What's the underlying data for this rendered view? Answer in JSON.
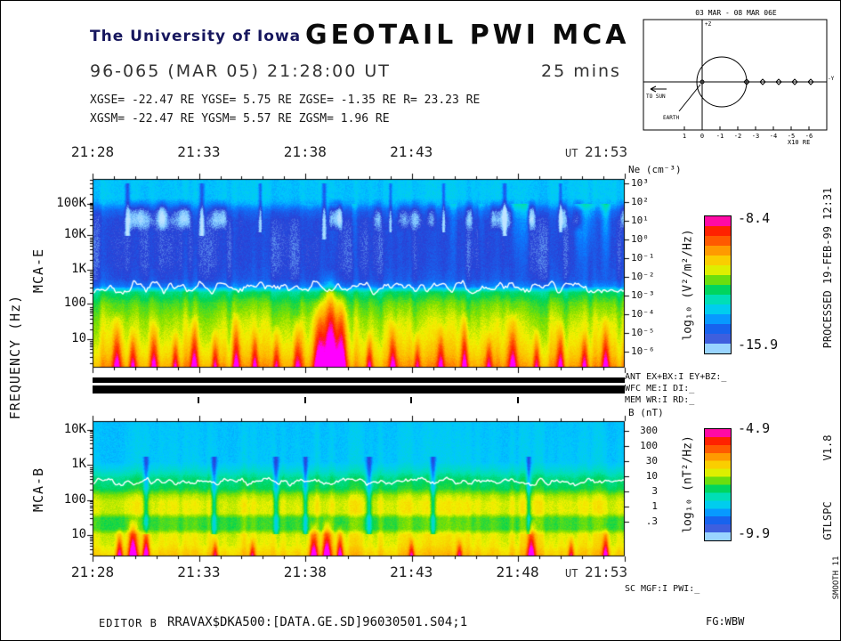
{
  "header": {
    "org": "The University of Iowa",
    "title": "GEOTAIL PWI MCA",
    "date_line": "96-065 (MAR 05) 21:28:00 UT",
    "duration": "25 mins",
    "gse_line": "XGSE= -22.47 RE   YGSE=   5.75 RE   ZGSE=  -1.35 RE   R= 23.23 RE",
    "gsm_line": "XGSM= -22.47 RE   YGSM=   5.57 RE   ZGSM=   1.96 RE"
  },
  "orbit_inset": {
    "title": "03 MAR - 08 MAR  06E",
    "to_sun_label": "TO SUN",
    "earth_label": "EARTH",
    "axis_unit": "X10 RE",
    "x_tick_numbers": [
      "1",
      "0",
      "-1",
      "-2",
      "-3",
      "-4",
      "-5",
      "-6"
    ],
    "z_axis_label": "+Z",
    "y_axis_label": "-Y"
  },
  "axes": {
    "ut_label": "UT",
    "top_times": [
      "21:28",
      "21:33",
      "21:38",
      "21:43"
    ],
    "top_end_time": "21:53",
    "bottom_times": [
      "21:28",
      "21:33",
      "21:38",
      "21:43",
      "21:48"
    ],
    "bottom_end_time": "21:53",
    "freq_axis_label": "FREQUENCY (Hz)",
    "panel_e_label": "MCA-E",
    "panel_b_label": "MCA-B"
  },
  "status_flags": {
    "line1": "ANT EX+BX:I EY+BZ:_",
    "line2": "WFC ME:I DI:_",
    "line3": "MEM WR:I RD:_",
    "sc_line": "SC MGF:I PWI:_"
  },
  "side_notes": {
    "processed": "PROCESSED 19-FEB-99  12:31",
    "version": "V1.8",
    "program": "GTLSPC",
    "smooth": "SMOOTH 11"
  },
  "footer": {
    "editor": "EDITOR B",
    "file": "RRAVAX$DKA500:[DATA.GE.SD]96030501.S04;1",
    "fg": "FG:WBW"
  },
  "palette": {
    "description": "rainbow intensity scale, low to high",
    "stops": [
      [
        0.0,
        "#bfe4ff"
      ],
      [
        0.06,
        "#7ec8ff"
      ],
      [
        0.12,
        "#2a3fd4"
      ],
      [
        0.22,
        "#0b7bff"
      ],
      [
        0.3,
        "#00c8ff"
      ],
      [
        0.4,
        "#00e0b0"
      ],
      [
        0.47,
        "#00d455"
      ],
      [
        0.55,
        "#7fe000"
      ],
      [
        0.62,
        "#f2f200"
      ],
      [
        0.72,
        "#ffb400"
      ],
      [
        0.82,
        "#ff5a00"
      ],
      [
        0.9,
        "#ff1e00"
      ],
      [
        1.0,
        "#ff00ff"
      ]
    ]
  },
  "chart_data": [
    {
      "id": "mca-e",
      "type": "heatmap",
      "instrument": "MCA-E electric field spectrogram",
      "x_axis": {
        "start": "21:28",
        "end": "21:53",
        "minutes": 25,
        "major_tick_min": 5,
        "minor_tick_min": 1,
        "unit": "UT"
      },
      "y_axis": {
        "scale": "log",
        "unit": "Hz",
        "tick_labels": [
          "100K",
          "10K",
          "1K",
          "100",
          "10"
        ]
      },
      "right_axis": {
        "title": "Ne (cm⁻³)",
        "tick_labels": [
          "10³",
          "10²",
          "10¹",
          "10⁰",
          "10⁻¹",
          "10⁻²",
          "10⁻³",
          "10⁻⁴",
          "10⁻⁵",
          "10⁻⁶"
        ]
      },
      "colorbar": {
        "title": "log₁₀ (V²/m²/Hz)",
        "max_label": "-8.4",
        "min_label": "-15.9",
        "max": -8.4,
        "min": -15.9
      },
      "trace": {
        "name": "electron-plasma-frequency-line",
        "color": "#ffffff",
        "base": 0.575,
        "amp": 0.03
      },
      "notable_features": "Continuum/cyan band above ~30 kHz; deep-blue quiet band 1-20 kHz; intense broadband burst near 21:39 reaching ~1 kHz; yellow-red low-frequency noise below the white plasma-frequency cutoff line (~300-500 Hz)",
      "render": {
        "profile": [
          [
            0,
            0.3
          ],
          [
            0.1,
            0.3
          ],
          [
            0.13,
            0.27
          ],
          [
            0.17,
            0.18
          ],
          [
            0.22,
            0.135
          ],
          [
            0.34,
            0.125
          ],
          [
            0.46,
            0.13
          ],
          [
            0.53,
            0.15
          ],
          [
            0.57,
            0.22
          ],
          [
            0.6,
            0.44
          ],
          [
            0.66,
            0.52
          ],
          [
            0.75,
            0.58
          ],
          [
            0.85,
            0.62
          ],
          [
            0.93,
            0.67
          ],
          [
            1,
            0.74
          ]
        ],
        "noise": 0.02,
        "col_noise": 0.045,
        "blob_band": {
          "y0": 0.1,
          "y1": 0.28,
          "amp": 0.16,
          "thresh": 0.5
        },
        "curtain": {
          "y0": 0.13,
          "y1": 0.55,
          "amp": 0.15,
          "thresh": 0.55,
          "bias_right": true
        },
        "dips": [
          {
            "x": 0.065,
            "w": 0.004,
            "amp": 0.14,
            "y0": 0.02,
            "y1": 0.3
          },
          {
            "x": 0.205,
            "w": 0.004,
            "amp": 0.13,
            "y0": 0.02,
            "y1": 0.3
          },
          {
            "x": 0.315,
            "w": 0.003,
            "amp": 0.12,
            "y0": 0.02,
            "y1": 0.28
          },
          {
            "x": 0.435,
            "w": 0.004,
            "amp": 0.14,
            "y0": 0.02,
            "y1": 0.32
          },
          {
            "x": 0.56,
            "w": 0.003,
            "amp": 0.12,
            "y0": 0.02,
            "y1": 0.28
          },
          {
            "x": 0.66,
            "w": 0.003,
            "amp": 0.12,
            "y0": 0.02,
            "y1": 0.28
          },
          {
            "x": 0.775,
            "w": 0.004,
            "amp": 0.14,
            "y0": 0.02,
            "y1": 0.3
          },
          {
            "x": 0.88,
            "w": 0.003,
            "amp": 0.12,
            "y0": 0.02,
            "y1": 0.28
          }
        ],
        "spikes": [
          {
            "x": 0.045,
            "w": 0.008,
            "amp": 0.35,
            "reach": 0.3
          },
          {
            "x": 0.075,
            "w": 0.006,
            "amp": 0.3,
            "reach": 0.22
          },
          {
            "x": 0.115,
            "w": 0.007,
            "amp": 0.32,
            "reach": 0.26
          },
          {
            "x": 0.155,
            "w": 0.006,
            "amp": 0.28,
            "reach": 0.2
          },
          {
            "x": 0.19,
            "w": 0.008,
            "amp": 0.35,
            "reach": 0.28
          },
          {
            "x": 0.23,
            "w": 0.006,
            "amp": 0.3,
            "reach": 0.22
          },
          {
            "x": 0.27,
            "w": 0.007,
            "amp": 0.33,
            "reach": 0.3
          },
          {
            "x": 0.305,
            "w": 0.006,
            "amp": 0.28,
            "reach": 0.22
          },
          {
            "x": 0.345,
            "w": 0.007,
            "amp": 0.3,
            "reach": 0.24
          },
          {
            "x": 0.385,
            "w": 0.008,
            "amp": 0.34,
            "reach": 0.28
          },
          {
            "x": 0.425,
            "w": 0.01,
            "amp": 0.45,
            "reach": 0.38
          },
          {
            "x": 0.447,
            "w": 0.012,
            "amp": 0.6,
            "reach": 0.52
          },
          {
            "x": 0.468,
            "w": 0.01,
            "amp": 0.5,
            "reach": 0.44
          },
          {
            "x": 0.52,
            "w": 0.006,
            "amp": 0.28,
            "reach": 0.2
          },
          {
            "x": 0.565,
            "w": 0.007,
            "amp": 0.32,
            "reach": 0.26
          },
          {
            "x": 0.61,
            "w": 0.006,
            "amp": 0.28,
            "reach": 0.2
          },
          {
            "x": 0.655,
            "w": 0.007,
            "amp": 0.3,
            "reach": 0.24
          },
          {
            "x": 0.7,
            "w": 0.007,
            "amp": 0.34,
            "reach": 0.3
          },
          {
            "x": 0.745,
            "w": 0.006,
            "amp": 0.28,
            "reach": 0.2
          },
          {
            "x": 0.79,
            "w": 0.008,
            "amp": 0.36,
            "reach": 0.32
          },
          {
            "x": 0.835,
            "w": 0.006,
            "amp": 0.3,
            "reach": 0.22
          },
          {
            "x": 0.88,
            "w": 0.007,
            "amp": 0.32,
            "reach": 0.26
          },
          {
            "x": 0.925,
            "w": 0.006,
            "amp": 0.28,
            "reach": 0.2
          },
          {
            "x": 0.965,
            "w": 0.007,
            "amp": 0.33,
            "reach": 0.28
          }
        ]
      }
    },
    {
      "id": "mca-b",
      "type": "heatmap",
      "instrument": "MCA-B magnetic field spectrogram",
      "x_axis": {
        "start": "21:28",
        "end": "21:53",
        "minutes": 25,
        "major_tick_min": 5,
        "minor_tick_min": 1,
        "unit": "UT"
      },
      "y_axis": {
        "scale": "log",
        "unit": "Hz",
        "tick_labels": [
          "10K",
          "1K",
          "100",
          "10"
        ]
      },
      "right_axis": {
        "title": "B (nT)",
        "tick_labels": [
          "300",
          "100",
          "30",
          "10",
          "3",
          "1",
          ".3"
        ]
      },
      "colorbar": {
        "title": "log₁₀ (nT²/Hz)",
        "max_label": "-4.9",
        "min_label": "-9.9",
        "max": -4.9,
        "min": -9.9
      },
      "trace": {
        "name": "cutoff-line",
        "color": "#ffffff",
        "base": 0.447,
        "amp": 0.025
      },
      "notable_features": "Cyan background above ~1 kHz; green-yellow whistler-mode hiss bands below ~700 Hz with quasi-periodic teal dropouts; magenta noise bursts at lowest frequencies near 21:30, 21:39 and 21:48",
      "render": {
        "profile": [
          [
            0,
            0.3
          ],
          [
            0.3,
            0.31
          ],
          [
            0.36,
            0.36
          ],
          [
            0.42,
            0.44
          ],
          [
            0.5,
            0.48
          ],
          [
            0.55,
            0.58
          ],
          [
            0.6,
            0.62
          ],
          [
            0.68,
            0.62
          ],
          [
            0.72,
            0.52
          ],
          [
            0.8,
            0.52
          ],
          [
            0.84,
            0.62
          ],
          [
            0.92,
            0.64
          ],
          [
            1,
            0.7
          ]
        ],
        "noise": 0.018,
        "col_noise": 0.04,
        "dips": [
          {
            "x": 0.1,
            "w": 0.005,
            "amp": 0.18,
            "y0": 0.26,
            "y1": 0.84
          },
          {
            "x": 0.228,
            "w": 0.005,
            "amp": 0.18,
            "y0": 0.26,
            "y1": 0.84
          },
          {
            "x": 0.344,
            "w": 0.005,
            "amp": 0.18,
            "y0": 0.26,
            "y1": 0.84
          },
          {
            "x": 0.4,
            "w": 0.004,
            "amp": 0.17,
            "y0": 0.26,
            "y1": 0.84
          },
          {
            "x": 0.52,
            "w": 0.005,
            "amp": 0.18,
            "y0": 0.26,
            "y1": 0.84
          },
          {
            "x": 0.64,
            "w": 0.005,
            "amp": 0.18,
            "y0": 0.26,
            "y1": 0.84
          },
          {
            "x": 0.82,
            "w": 0.004,
            "amp": 0.17,
            "y0": 0.26,
            "y1": 0.84
          }
        ],
        "spikes": [
          {
            "x": 0.05,
            "w": 0.006,
            "amp": 0.4,
            "reach": 0.22
          },
          {
            "x": 0.075,
            "w": 0.008,
            "amp": 0.5,
            "reach": 0.3
          },
          {
            "x": 0.1,
            "w": 0.006,
            "amp": 0.42,
            "reach": 0.24
          },
          {
            "x": 0.23,
            "w": 0.005,
            "amp": 0.3,
            "reach": 0.15
          },
          {
            "x": 0.3,
            "w": 0.005,
            "amp": 0.28,
            "reach": 0.14
          },
          {
            "x": 0.415,
            "w": 0.007,
            "amp": 0.45,
            "reach": 0.26
          },
          {
            "x": 0.44,
            "w": 0.008,
            "amp": 0.5,
            "reach": 0.3
          },
          {
            "x": 0.465,
            "w": 0.006,
            "amp": 0.42,
            "reach": 0.24
          },
          {
            "x": 0.6,
            "w": 0.005,
            "amp": 0.3,
            "reach": 0.15
          },
          {
            "x": 0.69,
            "w": 0.005,
            "amp": 0.28,
            "reach": 0.14
          },
          {
            "x": 0.825,
            "w": 0.007,
            "amp": 0.48,
            "reach": 0.28
          },
          {
            "x": 0.9,
            "w": 0.005,
            "amp": 0.3,
            "reach": 0.16
          },
          {
            "x": 0.965,
            "w": 0.006,
            "amp": 0.4,
            "reach": 0.22
          }
        ]
      }
    }
  ]
}
